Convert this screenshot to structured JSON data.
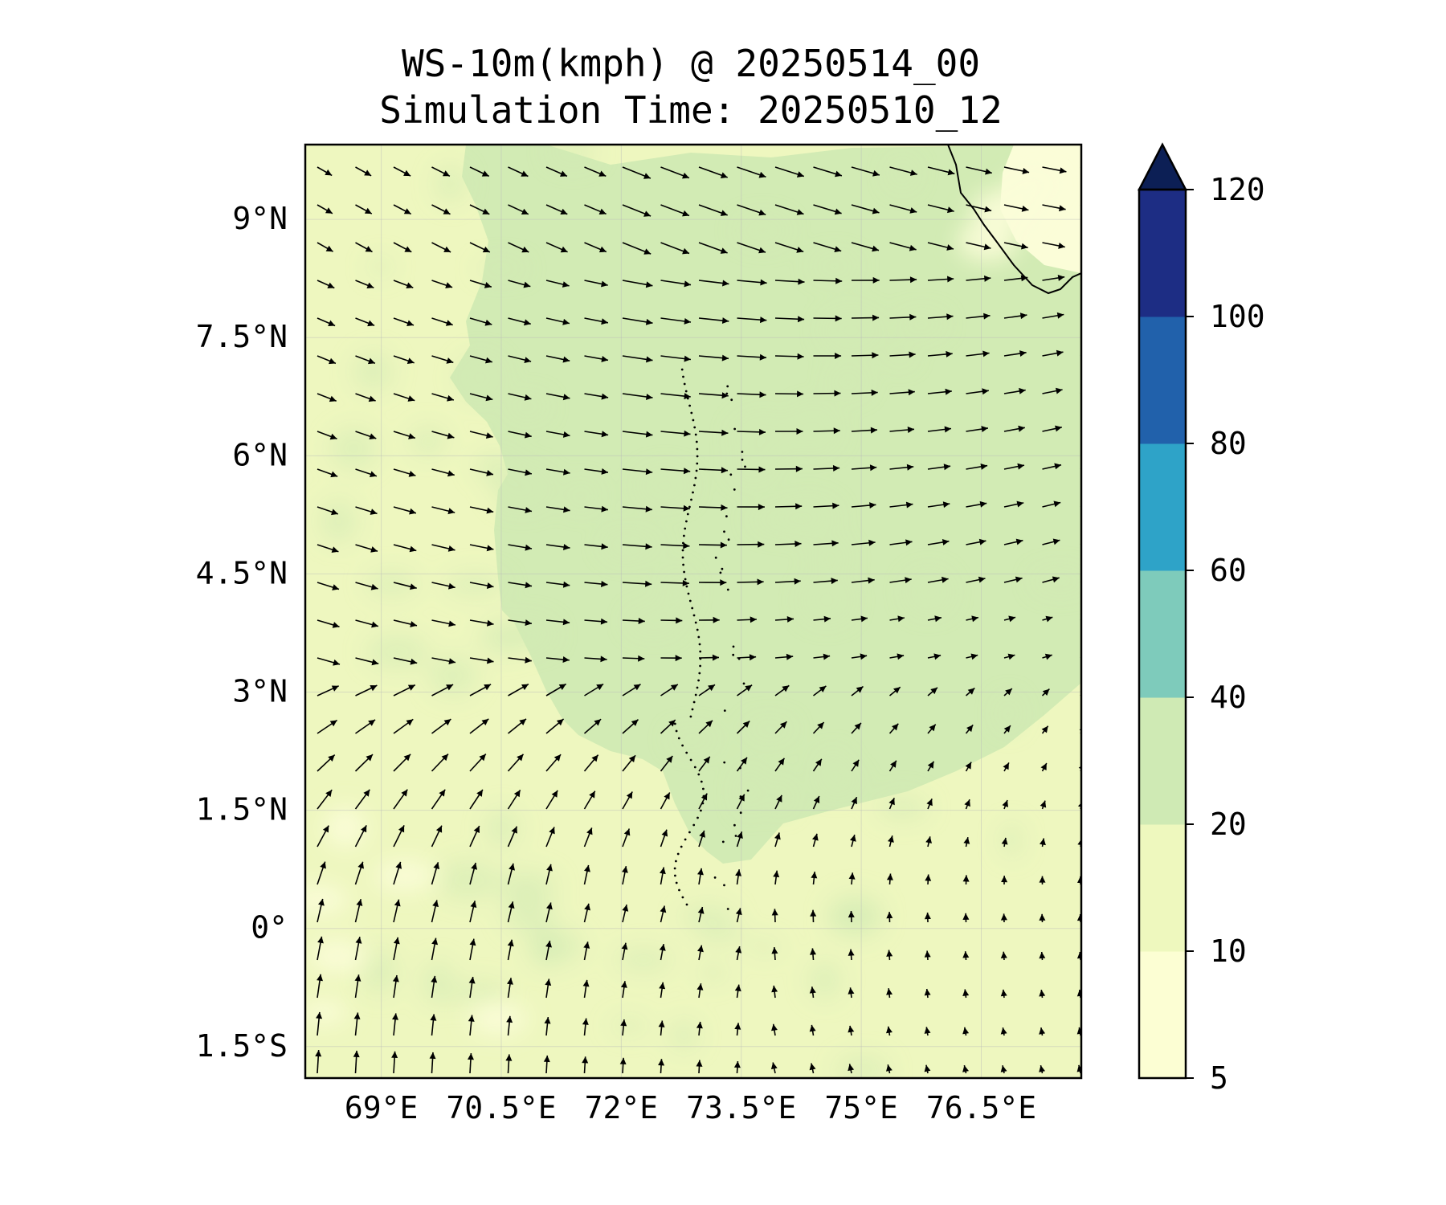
{
  "title": {
    "line1": "WS-10m(kmph) @ 20250514_00",
    "line2": "Simulation Time: 20250510_12"
  },
  "map": {
    "lon_range": [
      68.05,
      77.75
    ],
    "lat_range": [
      -1.9,
      9.95
    ],
    "lon_ticks": [
      {
        "value": 69,
        "label": "69°E"
      },
      {
        "value": 70.5,
        "label": "70.5°E"
      },
      {
        "value": 72,
        "label": "72°E"
      },
      {
        "value": 73.5,
        "label": "73.5°E"
      },
      {
        "value": 75,
        "label": "75°E"
      },
      {
        "value": 76.5,
        "label": "76.5°E"
      }
    ],
    "lat_ticks": [
      {
        "value": 9,
        "label": "9°N"
      },
      {
        "value": 7.5,
        "label": "7.5°N"
      },
      {
        "value": 6,
        "label": "6°N"
      },
      {
        "value": 4.5,
        "label": "4.5°N"
      },
      {
        "value": 3,
        "label": "3°N"
      },
      {
        "value": 1.5,
        "label": "1.5°N"
      },
      {
        "value": 0,
        "label": "0°"
      },
      {
        "value": -1.5,
        "label": "1.5°S"
      }
    ],
    "gridlines": true,
    "base_fill_color": "#eef7bf",
    "field_colors": {
      "calm": "#fbfdd8",
      "moderate": "#d2ebb4"
    }
  },
  "colorbar": {
    "levels": [
      5,
      10,
      20,
      40,
      60,
      80,
      100,
      120
    ],
    "labels": [
      "5",
      "10",
      "20",
      "40",
      "60",
      "80",
      "100",
      "120"
    ],
    "colors": [
      "#fcfed3",
      "#eef8be",
      "#cfeab4",
      "#7ecbbb",
      "#2ea3c8",
      "#2161ab",
      "#1d2d84"
    ],
    "extend_color": "#0c1f55",
    "extend": "max"
  }
}
